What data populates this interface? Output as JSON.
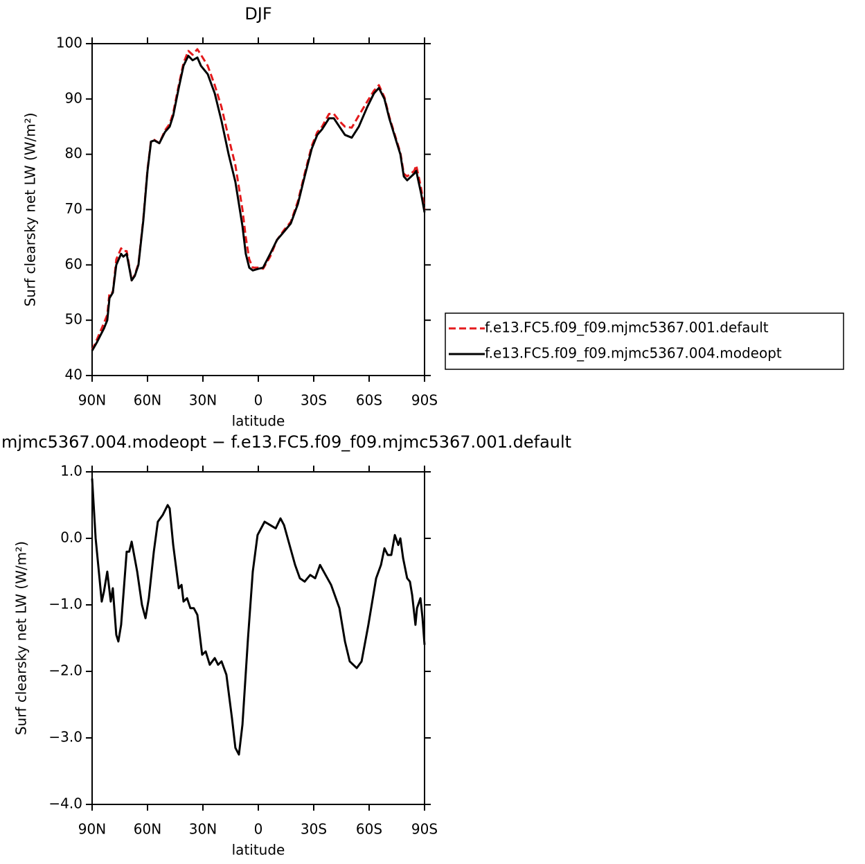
{
  "chart_data": [
    {
      "type": "line",
      "title": "DJF",
      "xlabel": "latitude",
      "ylabel": "Surf clearsky net LW (W/m²)",
      "x": [
        90,
        87.4,
        83.6,
        81.8,
        80.6,
        78.8,
        76.9,
        74.3,
        73.1,
        71.3,
        68.6,
        66.9,
        64.9,
        62.3,
        60,
        58.1,
        56.3,
        53.6,
        50.6,
        48,
        46.1,
        43.1,
        40.5,
        37.9,
        35.6,
        33,
        31.1,
        27.4,
        23.6,
        19.9,
        16.1,
        12.4,
        8.6,
        6.8,
        4.9,
        3,
        0,
        -2.6,
        -6.4,
        -10.1,
        -13.9,
        -17.6,
        -21.4,
        -25.1,
        -28.9,
        -31.9,
        -34.5,
        -38.3,
        -40.9,
        -43.9,
        -46.9,
        -50.6,
        -54.4,
        -58.9,
        -62.6,
        -65.3,
        -68.3,
        -70.9,
        -74.6,
        -76.9,
        -78.8,
        -80.6,
        -84.4,
        -85.5,
        -88.1,
        -90
      ],
      "series": [
        {
          "name": "f.e13.FC5.f09_f09.mjmc5367.001.default",
          "color": "#e41a1c",
          "linestyle": "dashed",
          "values": [
            44.6,
            46.5,
            49.5,
            51,
            55,
            55,
            61,
            63,
            62.5,
            62.5,
            57.2,
            58.2,
            60.2,
            68.3,
            77.3,
            82.5,
            82.6,
            82,
            84.3,
            85.5,
            87.5,
            92.5,
            96.5,
            98.7,
            98,
            99,
            98,
            96,
            92.5,
            88.5,
            83,
            78,
            70,
            65,
            61,
            59.5,
            59.5,
            59.3,
            61.5,
            64.5,
            66.3,
            67.8,
            71.5,
            76.5,
            81.5,
            84,
            85,
            87.3,
            87.3,
            86,
            85,
            84.8,
            87,
            89.5,
            91.5,
            92.5,
            90.3,
            86.8,
            82.8,
            80.3,
            76.5,
            76,
            77,
            78,
            74,
            70
          ]
        },
        {
          "name": "f.e13.FC5.f09_f09.mjmc5367.004.modeopt",
          "color": "#000000",
          "linestyle": "solid",
          "values": [
            44.5,
            46,
            48.5,
            50,
            54,
            55,
            60,
            62,
            61.5,
            62,
            57.2,
            58,
            60,
            68,
            77,
            82.3,
            82.5,
            82,
            84,
            85,
            87,
            92,
            96,
            97.8,
            97,
            97.5,
            96,
            94.5,
            91,
            86,
            80,
            75,
            67,
            62,
            59.5,
            59,
            59.3,
            59.5,
            62,
            64.5,
            66,
            67.5,
            71,
            76,
            81,
            83.5,
            84.5,
            86.5,
            86.5,
            85,
            83.5,
            83,
            85,
            88.5,
            91,
            92,
            90,
            86.5,
            82.5,
            80,
            76,
            75.3,
            76.5,
            77,
            73,
            69.5
          ]
        }
      ],
      "xlim": [
        90,
        -90
      ],
      "ylim": [
        40,
        100
      ],
      "xticks": [
        {
          "value": 90,
          "label": "90N"
        },
        {
          "value": 60,
          "label": "60N"
        },
        {
          "value": 30,
          "label": "30N"
        },
        0,
        {
          "value": -30,
          "label": "30S"
        },
        {
          "value": -60,
          "label": "60S"
        },
        {
          "value": -90,
          "label": "90S"
        }
      ],
      "yticks": [
        40,
        50,
        60,
        70,
        80,
        90,
        100
      ],
      "legend": "right"
    },
    {
      "type": "line",
      "title": "mjmc5367.004.modeopt − f.e13.FC5.f09_f09.mjmc5367.001.default",
      "xlabel": "latitude",
      "ylabel": "Surf clearsky net LW (W/m²)",
      "x": [
        90,
        88.1,
        84.8,
        83.6,
        81.8,
        79.9,
        78.8,
        76.9,
        75.8,
        74.3,
        71.3,
        69.9,
        68.6,
        65.6,
        63,
        61.1,
        59.3,
        56.6,
        54.4,
        51.8,
        49.1,
        48,
        46.1,
        43.1,
        41.6,
        40.5,
        38.6,
        36.8,
        34.9,
        33,
        30.4,
        28.5,
        26.3,
        23.6,
        21.8,
        19.9,
        17.3,
        14.3,
        12.4,
        10.5,
        8.6,
        5.6,
        3,
        0.4,
        -3.4,
        -6.4,
        -9.4,
        -12,
        -13.9,
        -16.9,
        -19.9,
        -22.5,
        -25.1,
        -28.1,
        -30.8,
        -33.4,
        -36.4,
        -39.4,
        -43.9,
        -46.9,
        -49.5,
        -53.3,
        -55.9,
        -59.6,
        -63.8,
        -66.4,
        -68.3,
        -70.1,
        -72,
        -73.9,
        -75.8,
        -76.9,
        -78.4,
        -80.6,
        -82.1,
        -83.3,
        -85.1,
        -85.9,
        -87.8,
        -88.9,
        -90
      ],
      "series": [
        {
          "color": "#000000",
          "linestyle": "solid",
          "values": [
            0.9,
            0,
            -0.95,
            -0.8,
            -0.5,
            -0.95,
            -0.75,
            -1.45,
            -1.55,
            -1.3,
            -0.2,
            -0.2,
            -0.05,
            -0.5,
            -1,
            -1.2,
            -0.9,
            -0.2,
            0.25,
            0.35,
            0.5,
            0.45,
            -0.1,
            -0.75,
            -0.7,
            -0.95,
            -0.9,
            -1.05,
            -1.05,
            -1.15,
            -1.75,
            -1.7,
            -1.9,
            -1.8,
            -1.9,
            -1.85,
            -2.05,
            -2.7,
            -3.15,
            -3.25,
            -2.8,
            -1.5,
            -0.5,
            0.05,
            0.25,
            0.2,
            0.15,
            0.3,
            0.2,
            -0.1,
            -0.4,
            -0.6,
            -0.65,
            -0.55,
            -0.6,
            -0.4,
            -0.55,
            -0.7,
            -1.05,
            -1.55,
            -1.85,
            -1.95,
            -1.85,
            -1.3,
            -0.6,
            -0.4,
            -0.15,
            -0.25,
            -0.25,
            0.05,
            -0.1,
            0,
            -0.3,
            -0.6,
            -0.65,
            -0.85,
            -1.3,
            -1.05,
            -0.9,
            -1.2,
            -1.6
          ]
        }
      ],
      "xlim": [
        90,
        -90
      ],
      "ylim": [
        -4,
        1
      ],
      "xticks": [
        {
          "value": 90,
          "label": "90N"
        },
        {
          "value": 60,
          "label": "60N"
        },
        {
          "value": 30,
          "label": "30N"
        },
        0,
        {
          "value": -30,
          "label": "30S"
        },
        {
          "value": -60,
          "label": "60S"
        },
        {
          "value": -90,
          "label": "90S"
        }
      ],
      "yticks": [
        {
          "value": -4,
          "label": "−4.0"
        },
        {
          "value": -3,
          "label": "−3.0"
        },
        {
          "value": -2,
          "label": "−2.0"
        },
        {
          "value": -1,
          "label": "−1.0"
        },
        {
          "value": 0,
          "label": "0.0"
        },
        {
          "value": 1,
          "label": "1.0"
        }
      ]
    }
  ]
}
